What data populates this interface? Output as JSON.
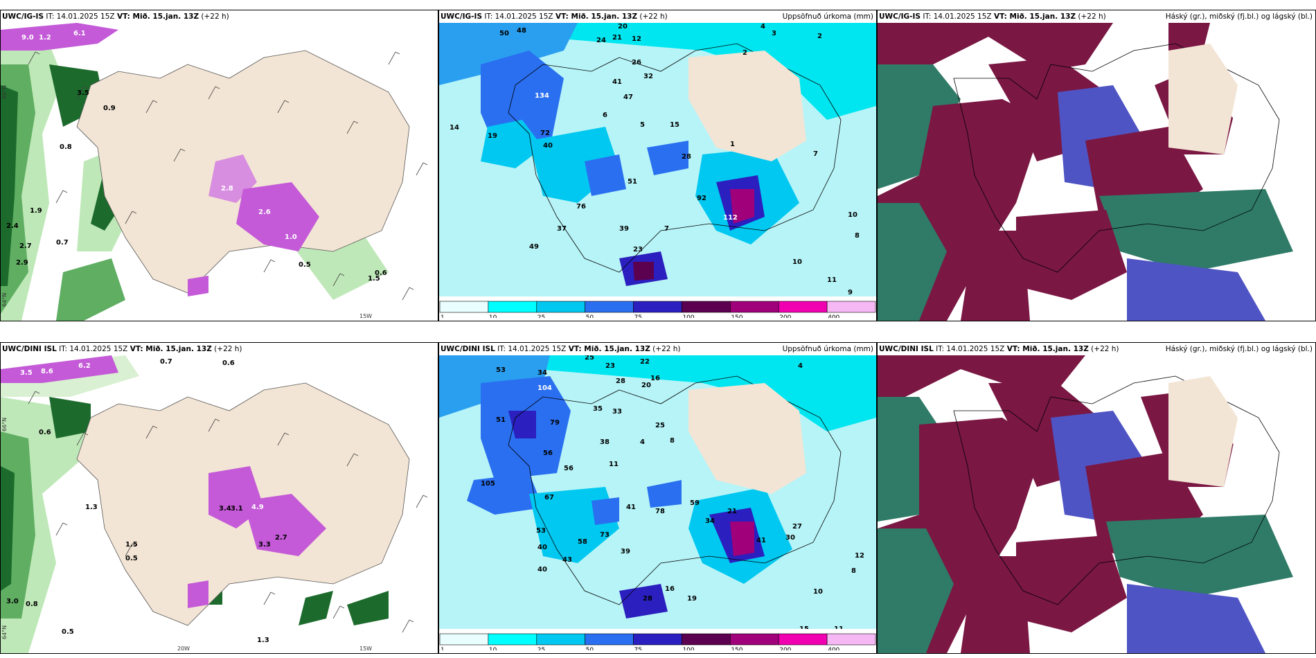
{
  "rows": [
    {
      "model": "UWC/IG-IS",
      "wind_panel": {
        "model": "UWC/IG-IS",
        "it": "IT: 14.01.2025 15Z",
        "vt": "VT: Mið. 15.jan. 13Z",
        "lead": "(+22 h)"
      },
      "precip_panel": {
        "model": "UWC/IG-IS",
        "it": "IT: 14.01.2025 15Z",
        "vt": "VT: Mið. 15.jan. 13Z",
        "lead": "(+22 h)",
        "right_title": "Uppsöfnuð úrkoma (mm)"
      },
      "cloud_panel": {
        "model": "UWC/IG-IS",
        "it": "IT: 14.01.2025 15Z",
        "vt": "VT: Mið. 15.jan. 13Z",
        "lead": "(+22 h)",
        "right_title": "Háský (gr.), miðský (fj.bl.) og lágský (bl.)"
      },
      "wind_labels": [
        "9.0",
        "1.2",
        "6.1",
        "3.5",
        "0.9",
        "0.8",
        "1.9",
        "2.4",
        "2.7",
        "2.9",
        "0.7",
        "0.5",
        "0.6",
        "2.8",
        "2.6",
        "1.0",
        "1.5"
      ],
      "precip_labels": [
        "50",
        "48",
        "24",
        "21",
        "12",
        "20",
        "4",
        "3",
        "2",
        "2",
        "41",
        "47",
        "32",
        "26",
        "14",
        "19",
        "134",
        "72",
        "40",
        "6",
        "5",
        "15",
        "1",
        "7",
        "28",
        "51",
        "76",
        "92",
        "112",
        "37",
        "39",
        "23",
        "10",
        "8",
        "11",
        "9",
        "7",
        "10",
        "49"
      ]
    },
    {
      "model": "UWC/DINI ISL",
      "wind_panel": {
        "model": "UWC/DINI ISL",
        "it": "IT: 14.01.2025 15Z",
        "vt": "VT: Mið. 15.jan. 13Z",
        "lead": "(+22 h)"
      },
      "precip_panel": {
        "model": "UWC/DINI ISL",
        "it": "IT: 14.01.2025 15Z",
        "vt": "VT: Mið. 15.jan. 13Z",
        "lead": "(+22 h)",
        "right_title": "Uppsöfnuð úrkoma (mm)"
      },
      "cloud_panel": {
        "model": "UWC/DINI ISL",
        "it": "IT: 14.01.2025 15Z",
        "vt": "VT: Mið. 15.jan. 13Z",
        "lead": "(+22 h)",
        "right_title": "Háský (gr.), miðský (fj.bl.) og lágský (bl.)"
      },
      "wind_labels": [
        "3.5",
        "8.6",
        "6.2",
        "0.7",
        "0.6",
        "0.6",
        "3.4",
        "3.1",
        "4.9",
        "3.3",
        "2.7",
        "1.5",
        "0.5",
        "3.0",
        "0.8",
        "1.3",
        "0.5",
        "1.3"
      ],
      "precip_labels": [
        "53",
        "34",
        "25",
        "23",
        "22",
        "4",
        "16",
        "104",
        "28",
        "20",
        "35",
        "33",
        "25",
        "79",
        "51",
        "56",
        "38",
        "4",
        "8",
        "11",
        "105",
        "67",
        "56",
        "41",
        "78",
        "59",
        "21",
        "34",
        "41",
        "27",
        "30",
        "12",
        "10",
        "15",
        "11",
        "8",
        "28",
        "19",
        "16",
        "53",
        "58",
        "40",
        "43",
        "40",
        "39",
        "73"
      ]
    }
  ],
  "axis_labels": {
    "lat_66": "66°N",
    "lat_64": "64°N",
    "lon_20": "20W",
    "lon_15": "15W"
  },
  "colorbar": {
    "ticks": [
      "1",
      "10",
      "25",
      "50",
      "75",
      "100",
      "150",
      "200",
      "400"
    ],
    "colors": [
      "#e9ffff",
      "#00ffff",
      "#00c8f0",
      "#2a6ff0",
      "#2b1fbf",
      "#5c0050",
      "#a0007a",
      "#f000b0",
      "#f5b8f5"
    ]
  },
  "colors": {
    "land": "#f3e5d5",
    "sea_precip": "#b7f4f7",
    "wind_green_dark": "#0c4d1c",
    "wind_green_light": "#bfe8b8",
    "wind_magenta": "#c45ad8",
    "cloud_maroon": "#7a1743",
    "cloud_teal": "#2f7b67",
    "cloud_blue": "#4f54c4"
  }
}
